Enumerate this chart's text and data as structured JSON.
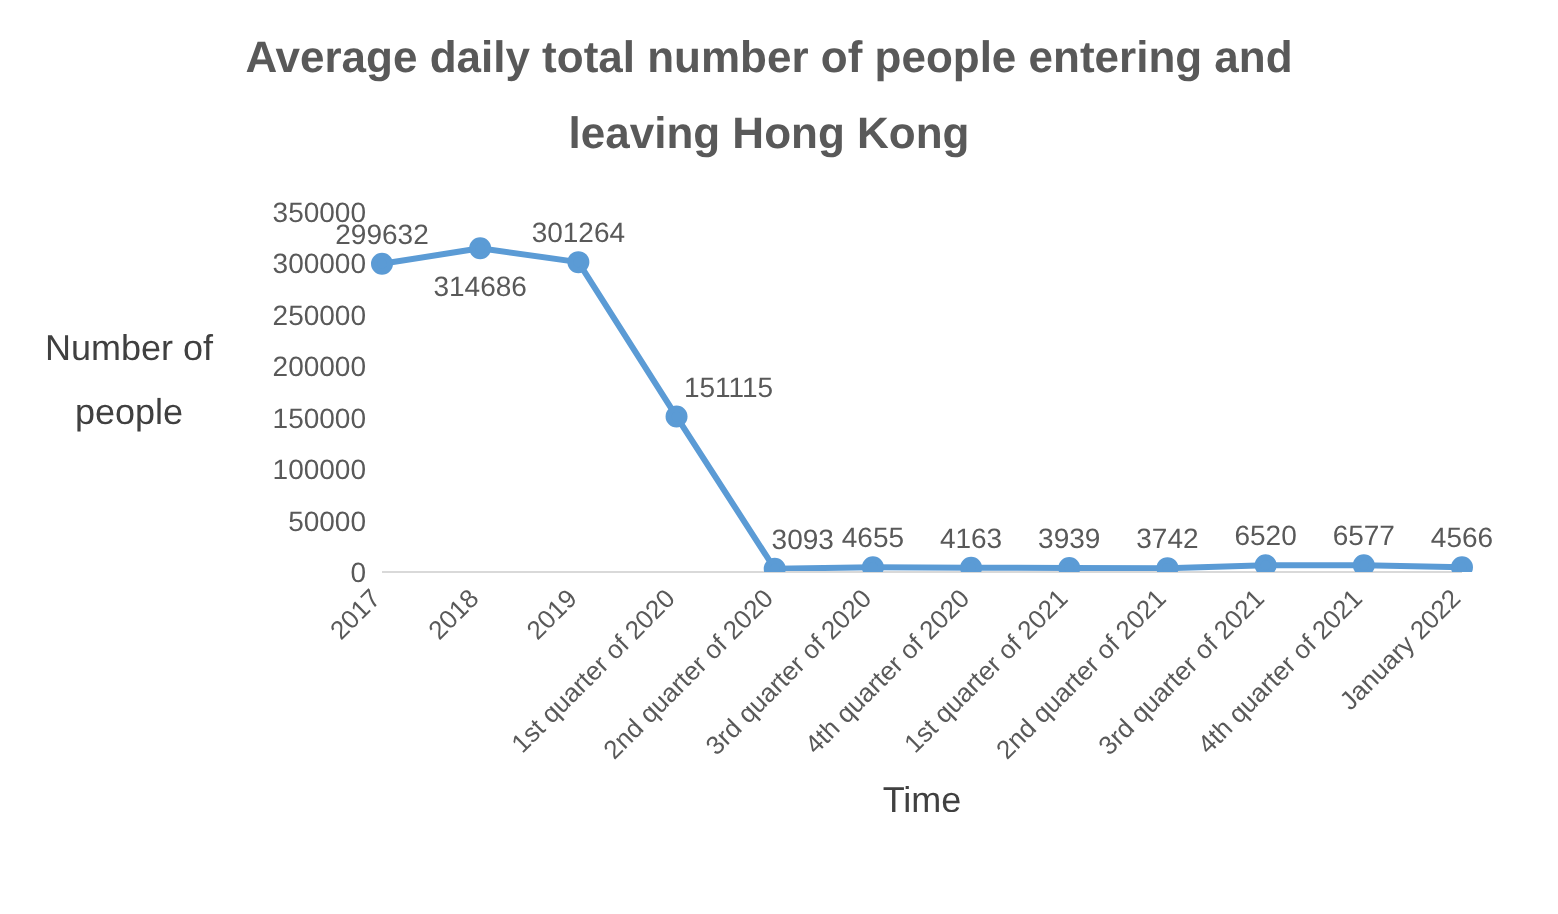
{
  "chart_data": {
    "type": "line",
    "title": "Average daily total number of people entering and leaving Hong Kong",
    "xlabel": "Time",
    "ylabel": "Number of people",
    "categories": [
      "2017",
      "2018",
      "2019",
      "1st quarter of 2020",
      "2nd quarter of 2020",
      "3rd quarter of 2020",
      "4th quarter of 2020",
      "1st quarter of 2021",
      "2nd quarter of 2021",
      "3rd quarter of 2021",
      "4th quarter of 2021",
      "January 2022"
    ],
    "values": [
      299632,
      314686,
      301264,
      151115,
      3093,
      4655,
      4163,
      3939,
      3742,
      6520,
      6577,
      4566
    ],
    "color": "#5b9bd5",
    "ylim": [
      0,
      350000
    ],
    "yticks": [
      0,
      50000,
      100000,
      150000,
      200000,
      250000,
      300000,
      350000
    ],
    "marker": "circle",
    "line_style": "solid",
    "data_labels": true
  }
}
